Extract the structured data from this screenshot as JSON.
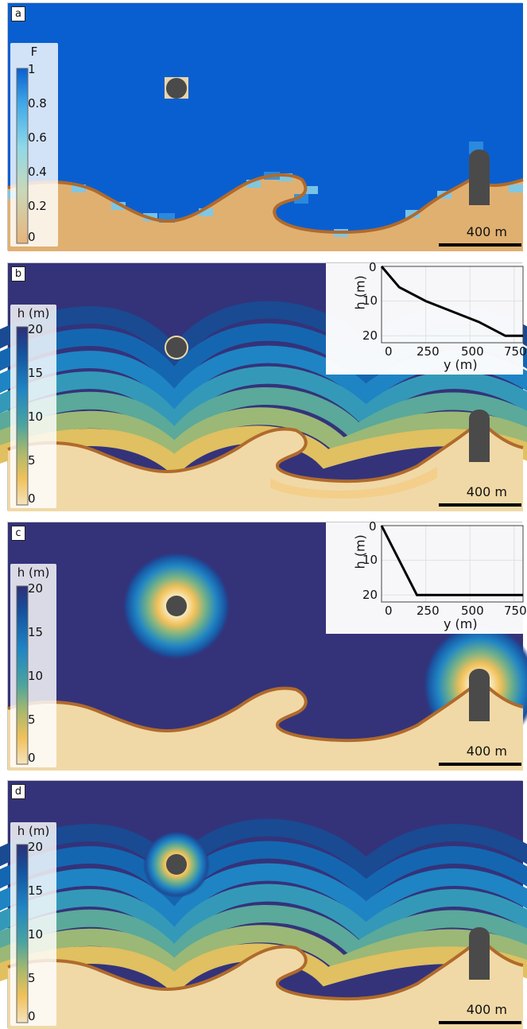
{
  "panels": {
    "a": {
      "letter": "a",
      "legend": {
        "title": "F",
        "ticks": [
          "1",
          "0.8",
          "0.6",
          "0.4",
          "0.2",
          "0"
        ]
      },
      "scale_label": "400 m"
    },
    "b": {
      "letter": "b",
      "legend": {
        "title": "h (m)",
        "ticks": [
          "20",
          "15",
          "10",
          "5",
          "0"
        ]
      },
      "scale_label": "400 m",
      "inset": {
        "ylabel": "h (m)",
        "xlabel": "y (m)",
        "yticks": [
          "0",
          "10",
          "20"
        ],
        "xticks": [
          "0",
          "250",
          "500",
          "750"
        ],
        "profile": [
          [
            0,
            0
          ],
          [
            100,
            6
          ],
          [
            250,
            10
          ],
          [
            400,
            13
          ],
          [
            550,
            16
          ],
          [
            700,
            20
          ],
          [
            800,
            20
          ]
        ]
      }
    },
    "c": {
      "letter": "c",
      "legend": {
        "title": "h (m)",
        "ticks": [
          "20",
          "15",
          "10",
          "5",
          "0"
        ]
      },
      "scale_label": "400 m",
      "inset": {
        "ylabel": "h (m)",
        "xlabel": "y (m)",
        "yticks": [
          "0",
          "10",
          "20"
        ],
        "xticks": [
          "0",
          "250",
          "500",
          "750"
        ],
        "profile": [
          [
            0,
            0
          ],
          [
            200,
            20
          ],
          [
            800,
            20
          ]
        ]
      }
    },
    "d": {
      "letter": "d",
      "legend": {
        "title": "h (m)",
        "ticks": [
          "20",
          "15",
          "10",
          "5",
          "0"
        ]
      },
      "scale_label": "400 m"
    }
  },
  "colors": {
    "water_f": "#0a5fd0",
    "deep": "#34337a",
    "sand": "#f0d9a6",
    "coast": "#b06a2c",
    "obstacle": "#4a4a4a"
  }
}
